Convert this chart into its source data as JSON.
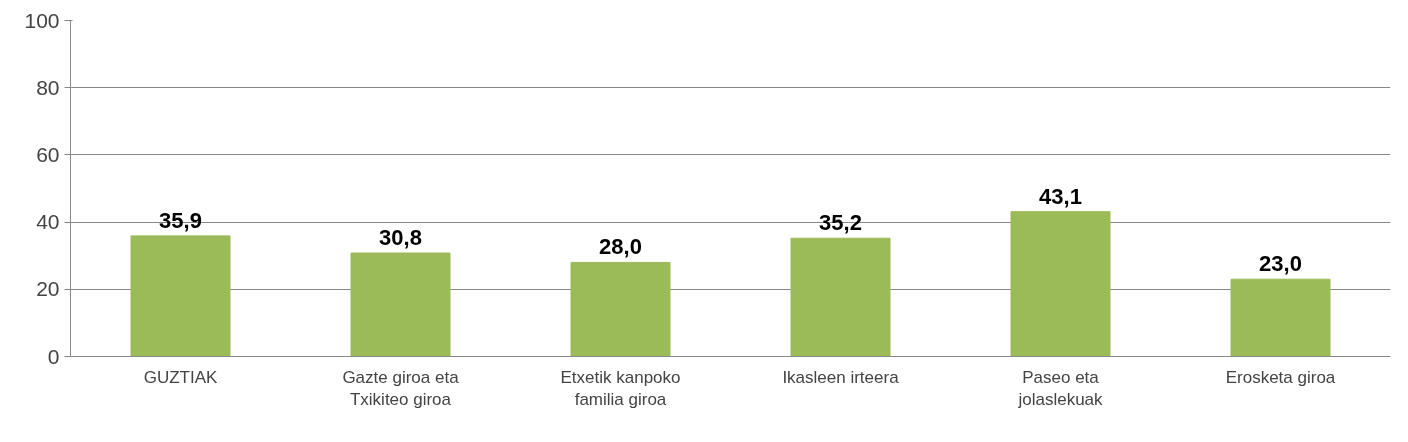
{
  "chart_data": {
    "type": "bar",
    "categories": [
      "GUZTIAK",
      "Gazte giroa eta Txikiteo giroa",
      "Etxetik kanpoko familia giroa",
      "Ikasleen irteera",
      "Paseo eta jolaslekuak",
      "Erosketa giroa"
    ],
    "values": [
      35.9,
      30.8,
      28.0,
      35.2,
      43.1,
      23.0
    ],
    "value_labels": [
      "35,9",
      "30,8",
      "28,0",
      "35,2",
      "43,1",
      "23,0"
    ],
    "color": "#9bbb59",
    "ylim": [
      0,
      100
    ],
    "yticks": [
      0,
      20,
      40,
      60,
      80,
      100
    ],
    "grid": "y"
  }
}
